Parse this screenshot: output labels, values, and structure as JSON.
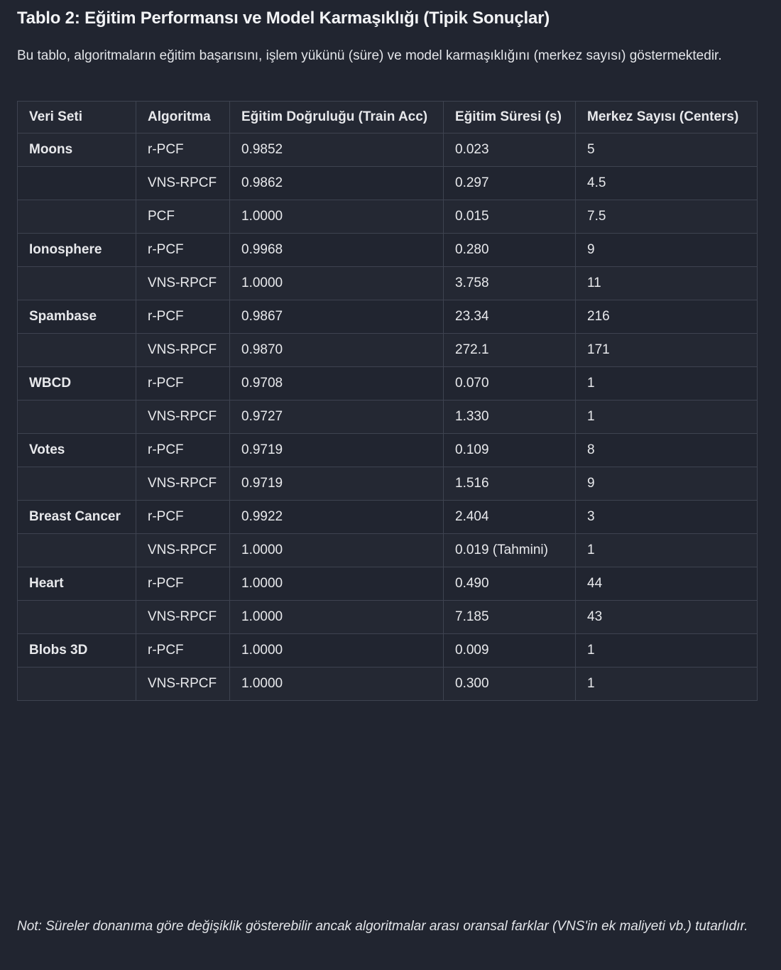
{
  "title": "Tablo 2: Eğitim Performansı ve Model Karmaşıklığı (Tipik Sonuçlar)",
  "description": "Bu tablo, algoritmaların eğitim başarısını, işlem yükünü (süre) ve model karmaşıklığını (merkez sayısı) göstermektedir.",
  "table": {
    "headers": [
      "Veri Seti",
      "Algoritma",
      "Eğitim Doğruluğu (Train Acc)",
      "Eğitim Süresi (s)",
      "Merkez Sayısı (Centers)"
    ],
    "rows": [
      {
        "dataset": "Moons",
        "algorithm": "r-PCF",
        "train_acc": "0.9852",
        "time": "0.023",
        "centers": "5"
      },
      {
        "dataset": "",
        "algorithm": "VNS-RPCF",
        "train_acc": "0.9862",
        "time": "0.297",
        "centers": "4.5"
      },
      {
        "dataset": "",
        "algorithm": "PCF",
        "train_acc": "1.0000",
        "time": "0.015",
        "centers": "7.5"
      },
      {
        "dataset": "Ionosphere",
        "algorithm": "r-PCF",
        "train_acc": "0.9968",
        "time": "0.280",
        "centers": "9"
      },
      {
        "dataset": "",
        "algorithm": "VNS-RPCF",
        "train_acc": "1.0000",
        "time": "3.758",
        "centers": "11"
      },
      {
        "dataset": "Spambase",
        "algorithm": "r-PCF",
        "train_acc": "0.9867",
        "time": "23.34",
        "centers": "216"
      },
      {
        "dataset": "",
        "algorithm": "VNS-RPCF",
        "train_acc": "0.9870",
        "time": "272.1",
        "centers": "171"
      },
      {
        "dataset": "WBCD",
        "algorithm": "r-PCF",
        "train_acc": "0.9708",
        "time": "0.070",
        "centers": "1"
      },
      {
        "dataset": "",
        "algorithm": "VNS-RPCF",
        "train_acc": "0.9727",
        "time": "1.330",
        "centers": "1"
      },
      {
        "dataset": "Votes",
        "algorithm": "r-PCF",
        "train_acc": "0.9719",
        "time": "0.109",
        "centers": "8"
      },
      {
        "dataset": "",
        "algorithm": "VNS-RPCF",
        "train_acc": "0.9719",
        "time": "1.516",
        "centers": "9"
      },
      {
        "dataset": "Breast Cancer",
        "algorithm": "r-PCF",
        "train_acc": "0.9922",
        "time": "2.404",
        "centers": "3"
      },
      {
        "dataset": "",
        "algorithm": "VNS-RPCF",
        "train_acc": "1.0000",
        "time": "0.019 (Tahmini)",
        "centers": "1"
      },
      {
        "dataset": "Heart",
        "algorithm": "r-PCF",
        "train_acc": "1.0000",
        "time": "0.490",
        "centers": "44"
      },
      {
        "dataset": "",
        "algorithm": "VNS-RPCF",
        "train_acc": "1.0000",
        "time": "7.185",
        "centers": "43"
      },
      {
        "dataset": "Blobs 3D",
        "algorithm": "r-PCF",
        "train_acc": "1.0000",
        "time": "0.009",
        "centers": "1"
      },
      {
        "dataset": "",
        "algorithm": "VNS-RPCF",
        "train_acc": "1.0000",
        "time": "0.300",
        "centers": "1"
      }
    ]
  },
  "note": "Not: Süreler donanıma göre değişiklik gösterebilir ancak algoritmalar arası oransal farklar (VNS'in ek maliyeti vb.) tutarlıdır."
}
